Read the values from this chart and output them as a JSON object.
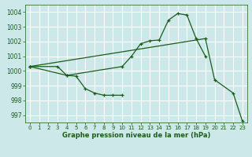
{
  "title": "Graphe pression niveau de la mer (hPa)",
  "bg_color": "#cce8e8",
  "grid_color": "#ffffff",
  "line_color": "#1a5c1a",
  "xlim": [
    -0.5,
    23.5
  ],
  "ylim": [
    996.5,
    1004.5
  ],
  "yticks": [
    997,
    998,
    999,
    1000,
    1001,
    1002,
    1003,
    1004
  ],
  "xticks": [
    0,
    1,
    2,
    3,
    4,
    5,
    6,
    7,
    8,
    9,
    10,
    11,
    12,
    13,
    14,
    15,
    16,
    17,
    18,
    19,
    20,
    21,
    22,
    23
  ],
  "series": [
    {
      "x": [
        0,
        3,
        4,
        5,
        6,
        7,
        8,
        9,
        10
      ],
      "y": [
        1000.3,
        1000.3,
        999.7,
        999.65,
        998.8,
        998.5,
        998.35,
        998.35,
        998.35
      ]
    },
    {
      "comment": "upper-mid line: 0=1000.3, goes to x=10 at 1000.3, rises to peak x=16=1003.9, then x=17=1003.8, x=18=1002.2, x=19=1001",
      "x": [
        0,
        4,
        10,
        11,
        12,
        13,
        14,
        15,
        16,
        17,
        18,
        19
      ],
      "y": [
        1000.3,
        999.7,
        1000.3,
        1001.0,
        1001.85,
        1002.05,
        1002.1,
        1003.45,
        1003.9,
        1003.8,
        1002.2,
        1001.0
      ]
    },
    {
      "x": [
        0,
        19,
        20,
        22,
        23
      ],
      "y": [
        1000.3,
        1002.2,
        999.4,
        998.5,
        996.6
      ]
    }
  ]
}
